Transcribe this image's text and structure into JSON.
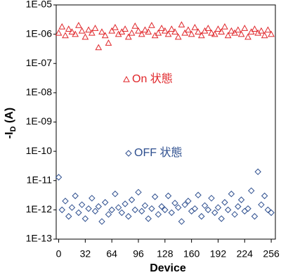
{
  "chart_data": {
    "type": "scatter",
    "x_label": "Device",
    "y_label": {
      "main": "-I",
      "sub": "D",
      "unit": "(A)"
    },
    "log_y": true,
    "grid": false,
    "xlim": [
      -3,
      261
    ],
    "xticks": [
      0,
      32,
      64,
      96,
      128,
      160,
      192,
      224,
      256
    ],
    "ylim": [
      1e-13,
      1e-05
    ],
    "yticks": [
      {
        "value": 1e-05,
        "label": "1E-05"
      },
      {
        "value": 1e-06,
        "label": "1E-06"
      },
      {
        "value": 1e-07,
        "label": "1E-07"
      },
      {
        "value": 1e-08,
        "label": "1E-08"
      },
      {
        "value": 1e-09,
        "label": "1E-09"
      },
      {
        "value": 1e-10,
        "label": "1E-10"
      },
      {
        "value": 1e-11,
        "label": "1E-11"
      },
      {
        "value": 1e-12,
        "label": "1E-12"
      },
      {
        "value": 1e-13,
        "label": "1E-13"
      }
    ],
    "x": [
      0,
      4,
      8,
      12,
      16,
      20,
      24,
      28,
      32,
      36,
      40,
      44,
      48,
      52,
      56,
      60,
      64,
      68,
      72,
      76,
      80,
      84,
      88,
      92,
      96,
      100,
      104,
      108,
      112,
      116,
      120,
      124,
      128,
      132,
      136,
      140,
      144,
      148,
      152,
      156,
      160,
      164,
      168,
      172,
      176,
      180,
      184,
      188,
      192,
      196,
      200,
      204,
      208,
      212,
      216,
      220,
      224,
      228,
      232,
      236,
      240,
      244,
      248,
      252,
      256
    ],
    "series": [
      {
        "name": "On 状態",
        "color": "#e0262a",
        "marker": "triangle",
        "values": [
          1.1e-06,
          1.8e-06,
          9e-07,
          1.5e-06,
          1.2e-06,
          1e-06,
          2e-06,
          1.3e-06,
          8e-07,
          1.4e-06,
          1.1e-06,
          1.6e-06,
          3.5e-07,
          1.2e-06,
          9e-07,
          5e-07,
          1.3e-06,
          1.7e-06,
          1e-06,
          1.2e-06,
          1.5e-06,
          8e-07,
          1.1e-06,
          1.9e-06,
          1.3e-06,
          1e-06,
          1.4e-06,
          1.2e-06,
          2e-06,
          9e-07,
          1.1e-06,
          1.6e-06,
          1.3e-06,
          1e-06,
          1.5e-06,
          1.2e-06,
          8e-07,
          2.1e-06,
          1.1e-06,
          1.4e-06,
          1e-06,
          1.7e-06,
          1.2e-06,
          9e-07,
          1.3e-06,
          1.6e-06,
          1.1e-06,
          1e-06,
          1.5e-06,
          1.2e-06,
          1.8e-06,
          9e-07,
          1.3e-06,
          1.1e-06,
          1.4e-06,
          1e-06,
          1.6e-06,
          8e-07,
          1.2e-06,
          1.5e-06,
          1.1e-06,
          1.3e-06,
          9e-07,
          1.4e-06,
          1e-06
        ]
      },
      {
        "name": "OFF 状態",
        "color": "#2e4f8f",
        "marker": "diamond",
        "values": [
          1.3e-11,
          1e-12,
          2e-12,
          6e-13,
          1.2e-12,
          3e-12,
          8e-13,
          1.5e-12,
          5e-13,
          1.1e-12,
          2.5e-12,
          9e-13,
          1.3e-12,
          4e-13,
          1.8e-12,
          7e-13,
          1e-12,
          3.5e-12,
          1.2e-12,
          8e-13,
          1.6e-12,
          6e-13,
          2.2e-12,
          1e-12,
          4e-12,
          9e-13,
          1.4e-12,
          5e-13,
          1.1e-12,
          2.8e-12,
          7e-13,
          1.3e-12,
          1e-12,
          3e-12,
          8e-13,
          1.7e-12,
          1.2e-12,
          4e-13,
          1.5e-12,
          2e-12,
          9e-13,
          1.1e-12,
          3.2e-12,
          6e-13,
          1.4e-12,
          1e-12,
          2.5e-12,
          8e-13,
          1.2e-12,
          5e-13,
          1.8e-12,
          1e-12,
          3.5e-12,
          7e-13,
          1.3e-12,
          2.2e-12,
          9e-13,
          1.1e-12,
          4.5e-12,
          6e-13,
          2e-11,
          1.5e-12,
          3e-12,
          1e-12,
          8e-13
        ]
      }
    ]
  }
}
